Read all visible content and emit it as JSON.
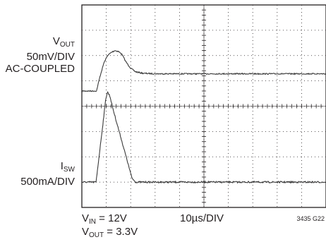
{
  "chart_data": {
    "type": "line",
    "title": "",
    "grid": true,
    "divisions": {
      "x": 10,
      "y": 8
    },
    "series": [
      {
        "name": "VOUT",
        "scale": "50mV/DIV",
        "coupling": "AC-COUPLED",
        "unit_label": "mV",
        "x_div": [
          0,
          0.6,
          0.75,
          0.9,
          1.05,
          1.2,
          1.35,
          1.5,
          1.65,
          1.8,
          2.0,
          2.2,
          2.5,
          3,
          4,
          5,
          6,
          7,
          8,
          9,
          10
        ],
        "y_mV": [
          0,
          0,
          30,
          55,
          70,
          76,
          80,
          78,
          72,
          58,
          45,
          38,
          35,
          34,
          34,
          34,
          34,
          34,
          34,
          34,
          34
        ]
      },
      {
        "name": "ISW",
        "scale": "500mA/DIV",
        "unit_label": "mA",
        "x_div": [
          0,
          0.58,
          0.68,
          0.8,
          0.9,
          0.98,
          1.05,
          1.15,
          1.3,
          1.5,
          1.7,
          1.9,
          2.05,
          2.2,
          2.4,
          10
        ],
        "y_mA": [
          0,
          0,
          400,
          900,
          1300,
          1650,
          1780,
          1700,
          1400,
          1050,
          700,
          350,
          80,
          0,
          0,
          0
        ]
      }
    ]
  },
  "labels": {
    "vout_main": "V",
    "vout_sub": "OUT",
    "vout_scale": "50mV/DIV",
    "vout_coupling": "AC-COUPLED",
    "isw_main": "I",
    "isw_sub": "SW",
    "isw_scale": "500mA/DIV"
  },
  "captions": {
    "vin_main": "V",
    "vin_sub": "IN",
    "vin_value": " = 12V",
    "vout_main": "V",
    "vout_sub": "OUT",
    "vout_value": " = 3.3V",
    "timebase": "10µs/DIV",
    "figure_id": "3435 G22"
  },
  "colors": {
    "trace": "#3a3a3a",
    "grid": "#231f20",
    "frame": "#231f20"
  }
}
